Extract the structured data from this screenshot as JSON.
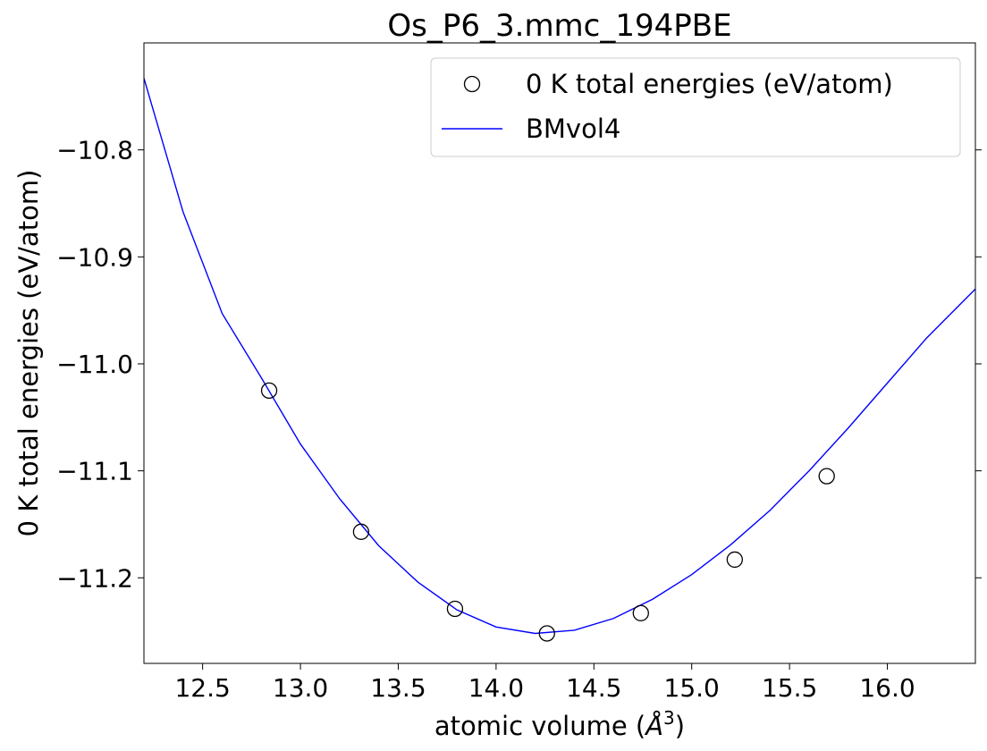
{
  "chart_data": {
    "type": "scatter",
    "title": "Os_P6_3.mmc_194PBE",
    "xlabel": "atomic volume (",
    "xlabel_unit": "Å",
    "xlabel_exp": "3",
    "xlabel_close": ")",
    "ylabel": "0 K total energies (eV/atom)",
    "xlim": [
      12.2,
      16.45
    ],
    "ylim": [
      -11.28,
      -10.7
    ],
    "x_ticks": [
      12.5,
      13.0,
      13.5,
      14.0,
      14.5,
      15.0,
      15.5,
      16.0
    ],
    "x_tick_labels": [
      "12.5",
      "13.0",
      "13.5",
      "14.0",
      "14.5",
      "15.0",
      "15.5",
      "16.0"
    ],
    "y_ticks": [
      -10.8,
      -10.9,
      -11.0,
      -11.1,
      -11.2
    ],
    "y_tick_labels": [
      "−10.8",
      "−10.9",
      "−11.0",
      "−11.1",
      "−11.2"
    ],
    "grid": false,
    "legend_position": "top-right",
    "series": [
      {
        "name": "0 K total energies (eV/atom)",
        "kind": "scatter",
        "color": "#000000",
        "x": [
          12.84,
          13.31,
          13.79,
          14.26,
          14.74,
          15.22,
          15.69
        ],
        "y": [
          -11.025,
          -11.157,
          -11.229,
          -11.252,
          -11.233,
          -11.183,
          -11.105
        ]
      },
      {
        "name": "BMvol4",
        "kind": "line",
        "color": "#0000ff",
        "x": [
          12.2,
          12.4,
          12.6,
          12.8,
          13.0,
          13.2,
          13.4,
          13.6,
          13.8,
          14.0,
          14.2,
          14.4,
          14.6,
          14.8,
          15.0,
          15.2,
          15.4,
          15.6,
          15.8,
          16.0,
          16.2,
          16.45
        ],
        "y": [
          -10.733,
          -10.858,
          -10.953,
          -11.013,
          -11.075,
          -11.126,
          -11.17,
          -11.204,
          -11.23,
          -11.246,
          -11.252,
          -11.249,
          -11.238,
          -11.22,
          -11.197,
          -11.169,
          -11.137,
          -11.1,
          -11.06,
          -11.018,
          -10.976,
          -10.93
        ]
      }
    ]
  }
}
